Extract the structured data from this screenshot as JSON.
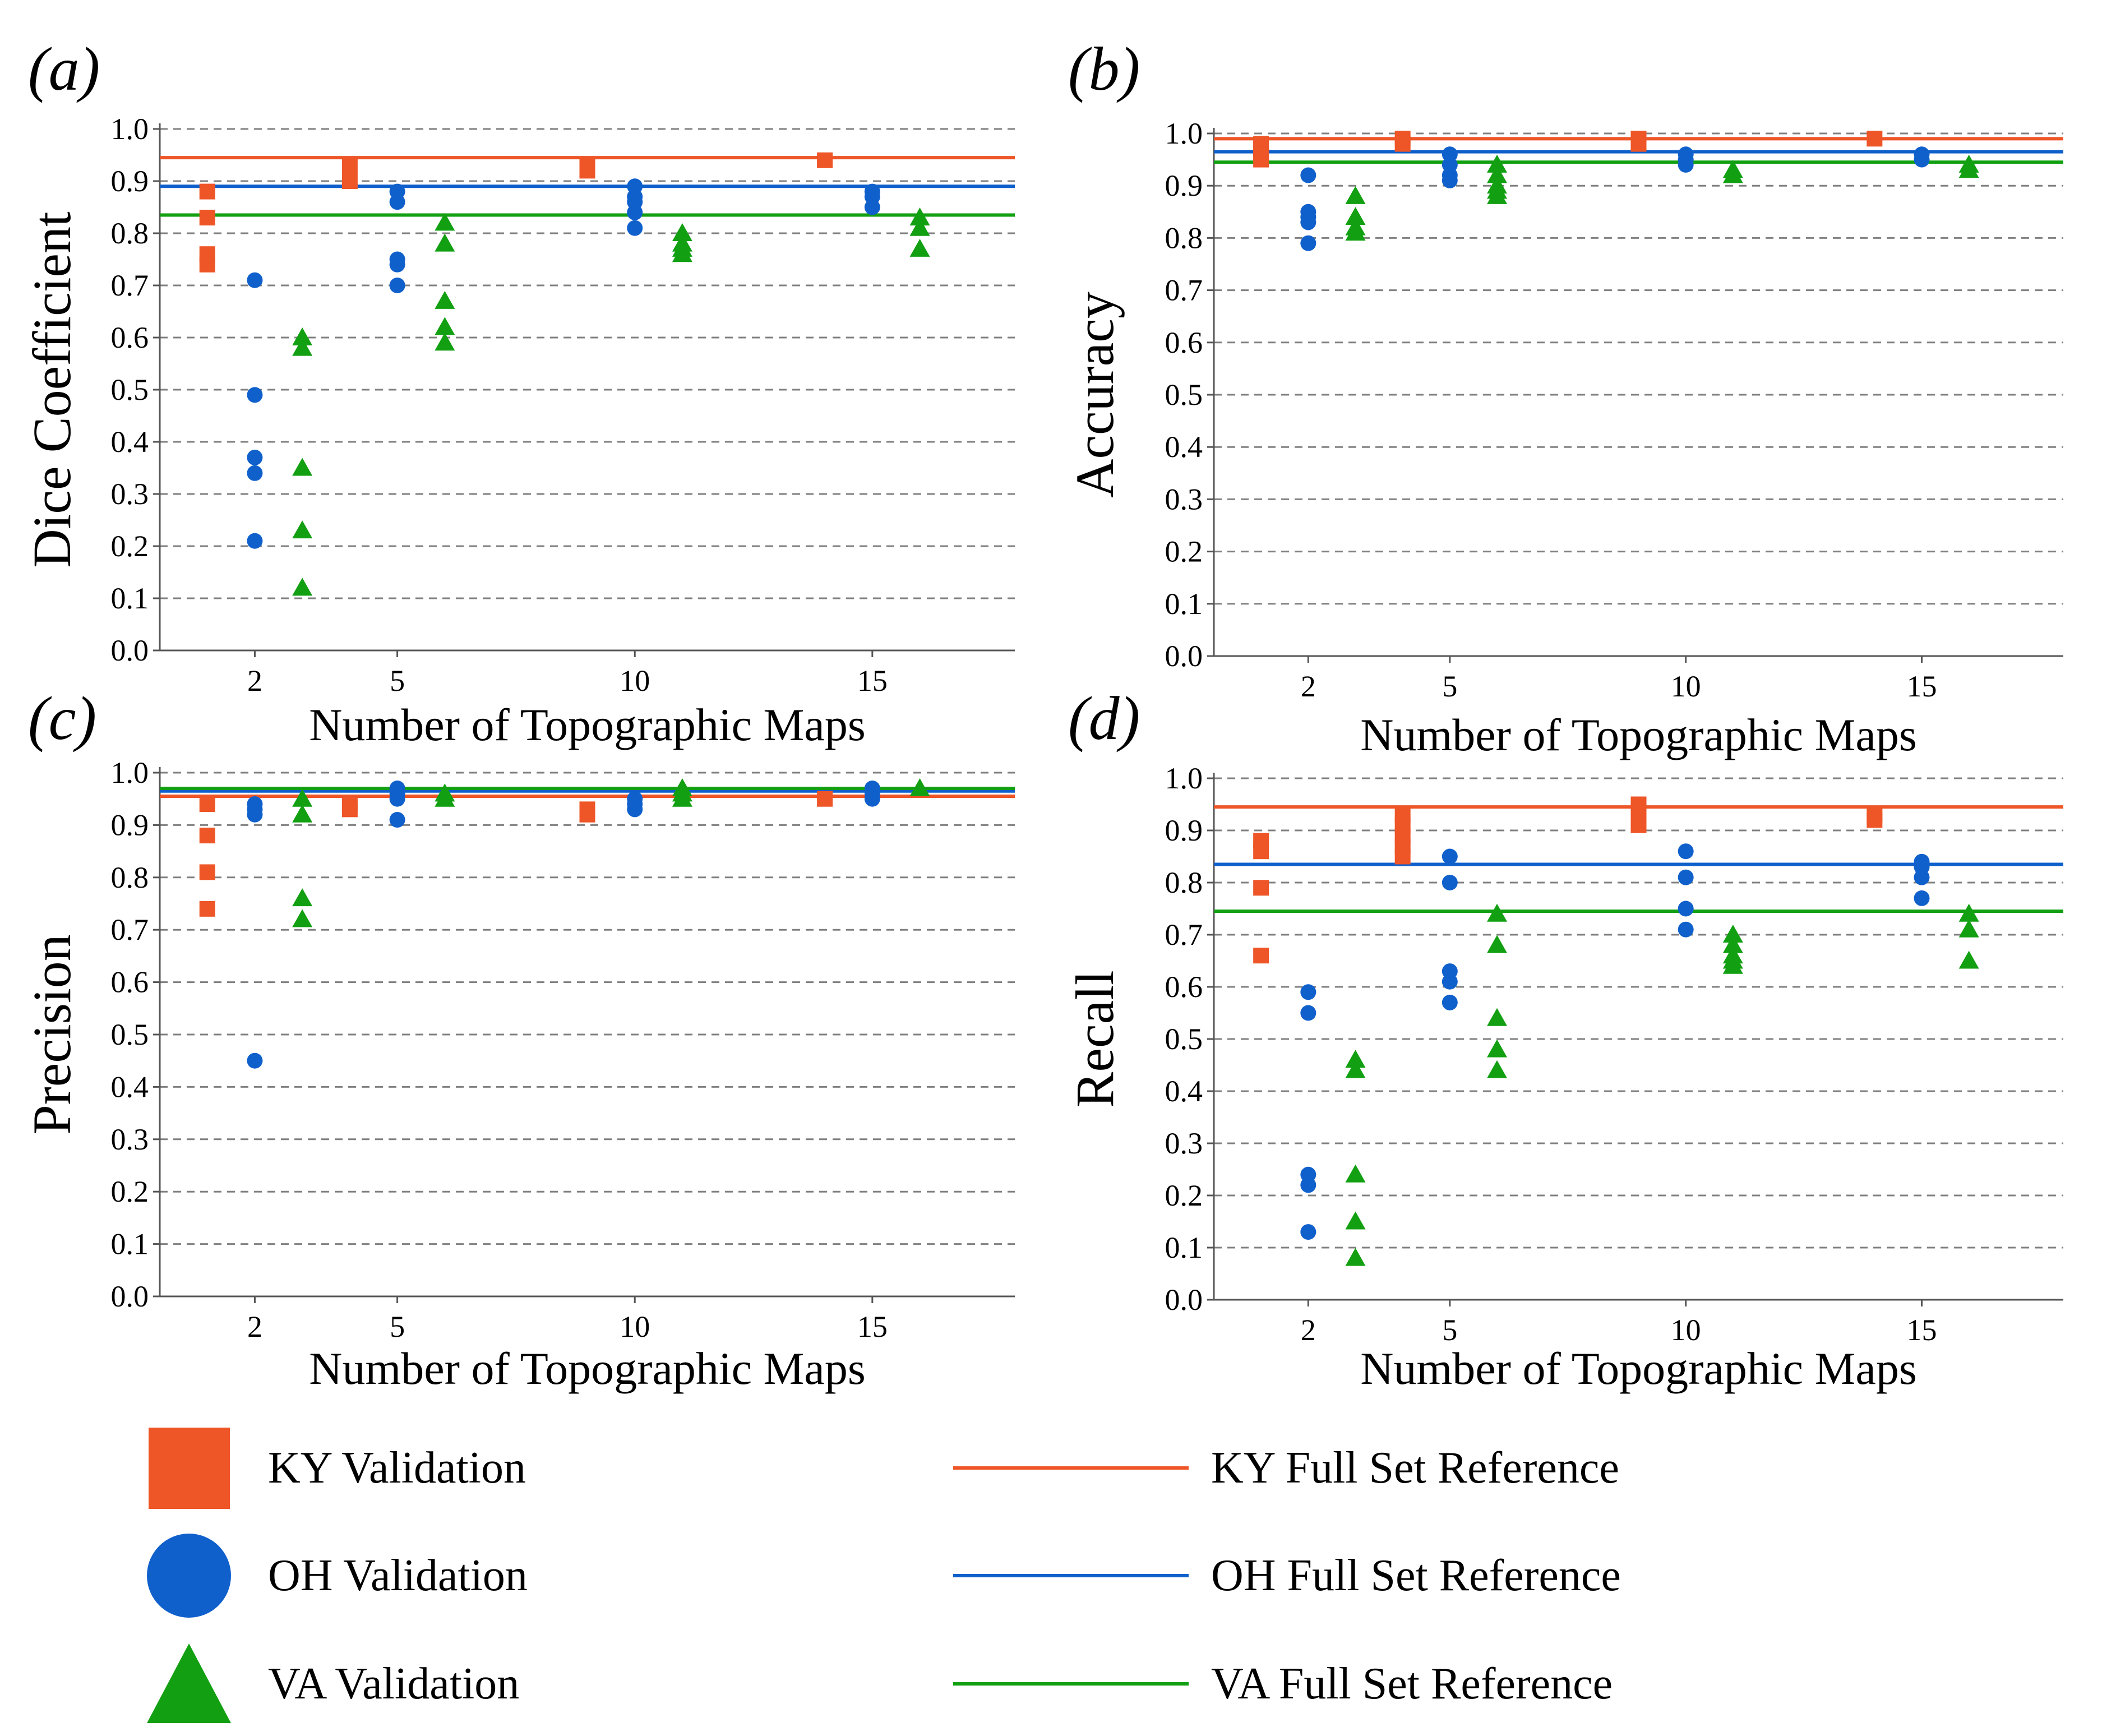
{
  "colors": {
    "KY": "#EE5527",
    "OH": "#1060CC",
    "VA": "#12A012",
    "grid": "#808080",
    "axis": "#555555",
    "text": "#000000"
  },
  "legend": {
    "items": [
      {
        "series": "KY",
        "shape": "square",
        "label": "KY Validation"
      },
      {
        "series": "OH",
        "shape": "circle",
        "label": "OH Validation"
      },
      {
        "series": "VA",
        "shape": "triangle",
        "label": "VA Validation"
      },
      {
        "series": "KY",
        "shape": "line",
        "label": "KY Full Set Reference"
      },
      {
        "series": "OH",
        "shape": "line",
        "label": "OH Full Set Reference"
      },
      {
        "series": "VA",
        "shape": "line",
        "label": "VA Full Set Reference"
      }
    ]
  },
  "chart_data": [
    {
      "panel": "(a)",
      "type": "scatter",
      "ylabel": "Dice Coefficient",
      "xlabel": "Number of Topographic Maps",
      "xlim": [
        0,
        18
      ],
      "ylim": [
        0,
        1
      ],
      "xticks": [
        2,
        5,
        10,
        15
      ],
      "yticks": [
        "0.0",
        "0.1",
        "0.2",
        "0.3",
        "0.4",
        "0.5",
        "0.6",
        "0.7",
        "0.8",
        "0.9",
        "1.0"
      ],
      "series": [
        {
          "name": "KY Validation",
          "key": "KY",
          "marker": "square",
          "points": [
            [
              1,
              0.88
            ],
            [
              1,
              0.83
            ],
            [
              1,
              0.76
            ],
            [
              1,
              0.74
            ],
            [
              4,
              0.93
            ],
            [
              4,
              0.9
            ],
            [
              9,
              0.93
            ],
            [
              9,
              0.92
            ],
            [
              14,
              0.94
            ]
          ]
        },
        {
          "name": "OH Validation",
          "key": "OH",
          "marker": "circle",
          "points": [
            [
              2,
              0.71
            ],
            [
              2,
              0.49
            ],
            [
              2,
              0.37
            ],
            [
              2,
              0.34
            ],
            [
              2,
              0.21
            ],
            [
              5,
              0.88
            ],
            [
              5,
              0.86
            ],
            [
              5,
              0.75
            ],
            [
              5,
              0.74
            ],
            [
              5,
              0.7
            ],
            [
              10,
              0.89
            ],
            [
              10,
              0.87
            ],
            [
              10,
              0.86
            ],
            [
              10,
              0.84
            ],
            [
              10,
              0.81
            ],
            [
              15,
              0.88
            ],
            [
              15,
              0.87
            ],
            [
              15,
              0.85
            ]
          ]
        },
        {
          "name": "VA Validation",
          "key": "VA",
          "marker": "triangle",
          "points": [
            [
              3,
              0.6
            ],
            [
              3,
              0.58
            ],
            [
              3,
              0.35
            ],
            [
              3,
              0.23
            ],
            [
              3,
              0.12
            ],
            [
              6,
              0.82
            ],
            [
              6,
              0.78
            ],
            [
              6,
              0.67
            ],
            [
              6,
              0.62
            ],
            [
              6,
              0.59
            ],
            [
              11,
              0.8
            ],
            [
              11,
              0.78
            ],
            [
              11,
              0.77
            ],
            [
              11,
              0.76
            ],
            [
              16,
              0.83
            ],
            [
              16,
              0.81
            ],
            [
              16,
              0.77
            ]
          ]
        }
      ],
      "references": [
        {
          "name": "KY Full Set Reference",
          "key": "KY",
          "value": 0.945
        },
        {
          "name": "OH Full Set Reference",
          "key": "OH",
          "value": 0.89
        },
        {
          "name": "VA Full Set Reference",
          "key": "VA",
          "value": 0.835
        }
      ]
    },
    {
      "panel": "(b)",
      "type": "scatter",
      "ylabel": "Accuracy",
      "xlabel": "Number of Topographic Maps",
      "xlim": [
        0,
        18
      ],
      "ylim": [
        0,
        1
      ],
      "xticks": [
        2,
        5,
        10,
        15
      ],
      "yticks": [
        "0.0",
        "0.1",
        "0.2",
        "0.3",
        "0.4",
        "0.5",
        "0.6",
        "0.7",
        "0.8",
        "0.9",
        "1.0"
      ],
      "series": [
        {
          "name": "KY Validation",
          "key": "KY",
          "marker": "square",
          "points": [
            [
              1,
              0.98
            ],
            [
              1,
              0.97
            ],
            [
              1,
              0.96
            ],
            [
              1,
              0.95
            ],
            [
              4,
              0.99
            ],
            [
              4,
              0.98
            ],
            [
              9,
              0.99
            ],
            [
              9,
              0.98
            ],
            [
              14,
              0.99
            ]
          ]
        },
        {
          "name": "OH Validation",
          "key": "OH",
          "marker": "circle",
          "points": [
            [
              2,
              0.92
            ],
            [
              2,
              0.85
            ],
            [
              2,
              0.84
            ],
            [
              2,
              0.83
            ],
            [
              2,
              0.79
            ],
            [
              5,
              0.96
            ],
            [
              5,
              0.94
            ],
            [
              5,
              0.92
            ],
            [
              5,
              0.91
            ],
            [
              10,
              0.96
            ],
            [
              10,
              0.95
            ],
            [
              10,
              0.94
            ],
            [
              15,
              0.96
            ],
            [
              15,
              0.95
            ]
          ]
        },
        {
          "name": "VA Validation",
          "key": "VA",
          "marker": "triangle",
          "points": [
            [
              3,
              0.88
            ],
            [
              3,
              0.84
            ],
            [
              3,
              0.82
            ],
            [
              3,
              0.81
            ],
            [
              6,
              0.94
            ],
            [
              6,
              0.92
            ],
            [
              6,
              0.9
            ],
            [
              6,
              0.89
            ],
            [
              6,
              0.88
            ],
            [
              11,
              0.93
            ],
            [
              11,
              0.92
            ],
            [
              16,
              0.94
            ],
            [
              16,
              0.93
            ]
          ]
        }
      ],
      "references": [
        {
          "name": "KY Full Set Reference",
          "key": "KY",
          "value": 0.99
        },
        {
          "name": "OH Full Set Reference",
          "key": "OH",
          "value": 0.965
        },
        {
          "name": "VA Full Set Reference",
          "key": "VA",
          "value": 0.945
        }
      ]
    },
    {
      "panel": "(c)",
      "type": "scatter",
      "ylabel": "Precision",
      "xlabel": "Number of Topographic Maps",
      "xlim": [
        0,
        18
      ],
      "ylim": [
        0,
        1
      ],
      "xticks": [
        2,
        5,
        10,
        15
      ],
      "yticks": [
        "0.0",
        "0.1",
        "0.2",
        "0.3",
        "0.4",
        "0.5",
        "0.6",
        "0.7",
        "0.8",
        "0.9",
        "1.0"
      ],
      "series": [
        {
          "name": "KY Validation",
          "key": "KY",
          "marker": "square",
          "points": [
            [
              1,
              0.94
            ],
            [
              1,
              0.88
            ],
            [
              1,
              0.81
            ],
            [
              1,
              0.74
            ],
            [
              4,
              0.94
            ],
            [
              4,
              0.93
            ],
            [
              9,
              0.93
            ],
            [
              9,
              0.92
            ],
            [
              14,
              0.95
            ]
          ]
        },
        {
          "name": "OH Validation",
          "key": "OH",
          "marker": "circle",
          "points": [
            [
              2,
              0.94
            ],
            [
              2,
              0.93
            ],
            [
              2,
              0.92
            ],
            [
              2,
              0.45
            ],
            [
              5,
              0.97
            ],
            [
              5,
              0.96
            ],
            [
              5,
              0.95
            ],
            [
              5,
              0.91
            ],
            [
              10,
              0.95
            ],
            [
              10,
              0.94
            ],
            [
              10,
              0.93
            ],
            [
              15,
              0.97
            ],
            [
              15,
              0.96
            ],
            [
              15,
              0.95
            ]
          ]
        },
        {
          "name": "VA Validation",
          "key": "VA",
          "marker": "triangle",
          "points": [
            [
              3,
              0.95
            ],
            [
              3,
              0.92
            ],
            [
              3,
              0.76
            ],
            [
              3,
              0.72
            ],
            [
              6,
              0.96
            ],
            [
              6,
              0.95
            ],
            [
              11,
              0.97
            ],
            [
              11,
              0.96
            ],
            [
              11,
              0.95
            ],
            [
              16,
              0.97
            ]
          ]
        }
      ],
      "references": [
        {
          "name": "KY Full Set Reference",
          "key": "KY",
          "value": 0.955
        },
        {
          "name": "OH Full Set Reference",
          "key": "OH",
          "value": 0.965
        },
        {
          "name": "VA Full Set Reference",
          "key": "VA",
          "value": 0.97
        }
      ]
    },
    {
      "panel": "(d)",
      "type": "scatter",
      "ylabel": "Recall",
      "xlabel": "Number of Topographic Maps",
      "xlim": [
        0,
        18
      ],
      "ylim": [
        0,
        1
      ],
      "xticks": [
        2,
        5,
        10,
        15
      ],
      "yticks": [
        "0.0",
        "0.1",
        "0.2",
        "0.3",
        "0.4",
        "0.5",
        "0.6",
        "0.7",
        "0.8",
        "0.9",
        "1.0"
      ],
      "series": [
        {
          "name": "KY Validation",
          "key": "KY",
          "marker": "square",
          "points": [
            [
              1,
              0.88
            ],
            [
              1,
              0.86
            ],
            [
              1,
              0.79
            ],
            [
              1,
              0.66
            ],
            [
              4,
              0.93
            ],
            [
              4,
              0.91
            ],
            [
              4,
              0.89
            ],
            [
              4,
              0.87
            ],
            [
              4,
              0.85
            ],
            [
              9,
              0.95
            ],
            [
              9,
              0.93
            ],
            [
              9,
              0.91
            ],
            [
              14,
              0.93
            ],
            [
              14,
              0.92
            ]
          ]
        },
        {
          "name": "OH Validation",
          "key": "OH",
          "marker": "circle",
          "points": [
            [
              2,
              0.59
            ],
            [
              2,
              0.55
            ],
            [
              2,
              0.24
            ],
            [
              2,
              0.22
            ],
            [
              2,
              0.13
            ],
            [
              5,
              0.85
            ],
            [
              5,
              0.8
            ],
            [
              5,
              0.63
            ],
            [
              5,
              0.61
            ],
            [
              5,
              0.57
            ],
            [
              10,
              0.86
            ],
            [
              10,
              0.81
            ],
            [
              10,
              0.75
            ],
            [
              10,
              0.71
            ],
            [
              15,
              0.84
            ],
            [
              15,
              0.83
            ],
            [
              15,
              0.81
            ],
            [
              15,
              0.77
            ]
          ]
        },
        {
          "name": "VA Validation",
          "key": "VA",
          "marker": "triangle",
          "points": [
            [
              3,
              0.46
            ],
            [
              3,
              0.44
            ],
            [
              3,
              0.24
            ],
            [
              3,
              0.15
            ],
            [
              3,
              0.08
            ],
            [
              6,
              0.74
            ],
            [
              6,
              0.68
            ],
            [
              6,
              0.54
            ],
            [
              6,
              0.48
            ],
            [
              6,
              0.44
            ],
            [
              11,
              0.7
            ],
            [
              11,
              0.68
            ],
            [
              11,
              0.66
            ],
            [
              11,
              0.65
            ],
            [
              11,
              0.64
            ],
            [
              16,
              0.74
            ],
            [
              16,
              0.71
            ],
            [
              16,
              0.65
            ]
          ]
        }
      ],
      "references": [
        {
          "name": "KY Full Set Reference",
          "key": "KY",
          "value": 0.945
        },
        {
          "name": "OH Full Set Reference",
          "key": "OH",
          "value": 0.835
        },
        {
          "name": "VA Full Set Reference",
          "key": "VA",
          "value": 0.745
        }
      ]
    }
  ]
}
